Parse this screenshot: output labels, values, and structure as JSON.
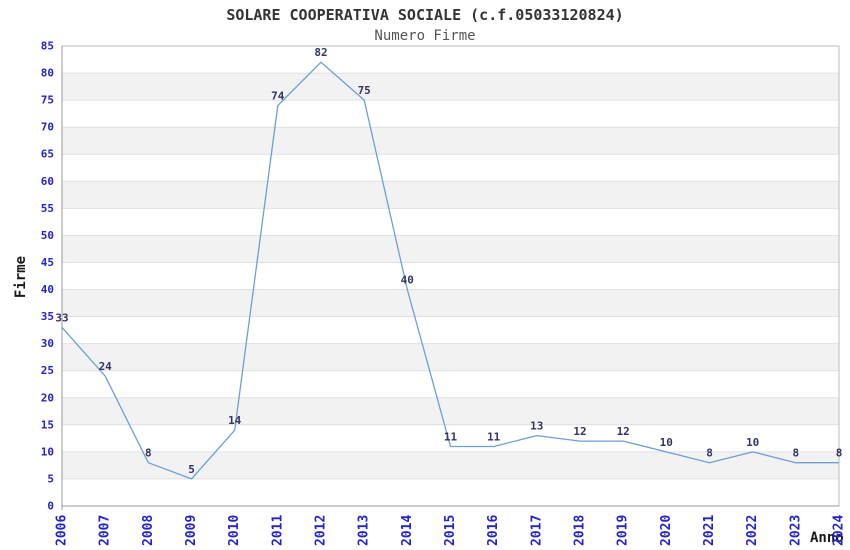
{
  "chart_data": {
    "type": "line",
    "title": "SOLARE COOPERATIVA SOCIALE (c.f.05033120824)",
    "subtitle": "Numero Firme",
    "xlabel": "Anno",
    "ylabel": "Firme",
    "x": [
      "2006",
      "2007",
      "2008",
      "2009",
      "2010",
      "2011",
      "2012",
      "2013",
      "2014",
      "2015",
      "2016",
      "2017",
      "2018",
      "2019",
      "2020",
      "2021",
      "2022",
      "2023",
      "2024"
    ],
    "values": [
      33,
      24,
      8,
      5,
      14,
      74,
      82,
      75,
      40,
      11,
      11,
      13,
      12,
      12,
      10,
      8,
      10,
      8,
      8
    ],
    "ylim": [
      0,
      85
    ],
    "ytick_step": 5,
    "grid": true,
    "alternating_bands": true,
    "point_labels": true,
    "legend_position": "none",
    "colors": {
      "line": "#6b9fd8",
      "tick_labels": "#2323cc",
      "data_labels": "#333366",
      "band": "#f2f2f2",
      "grid": "#e0e0e0",
      "frame": "#bbbbbb",
      "axis": "#999999",
      "title": "#333333",
      "subtitle": "#555555",
      "axis_title": "#1a1a1a",
      "background": "#ffffff"
    }
  }
}
